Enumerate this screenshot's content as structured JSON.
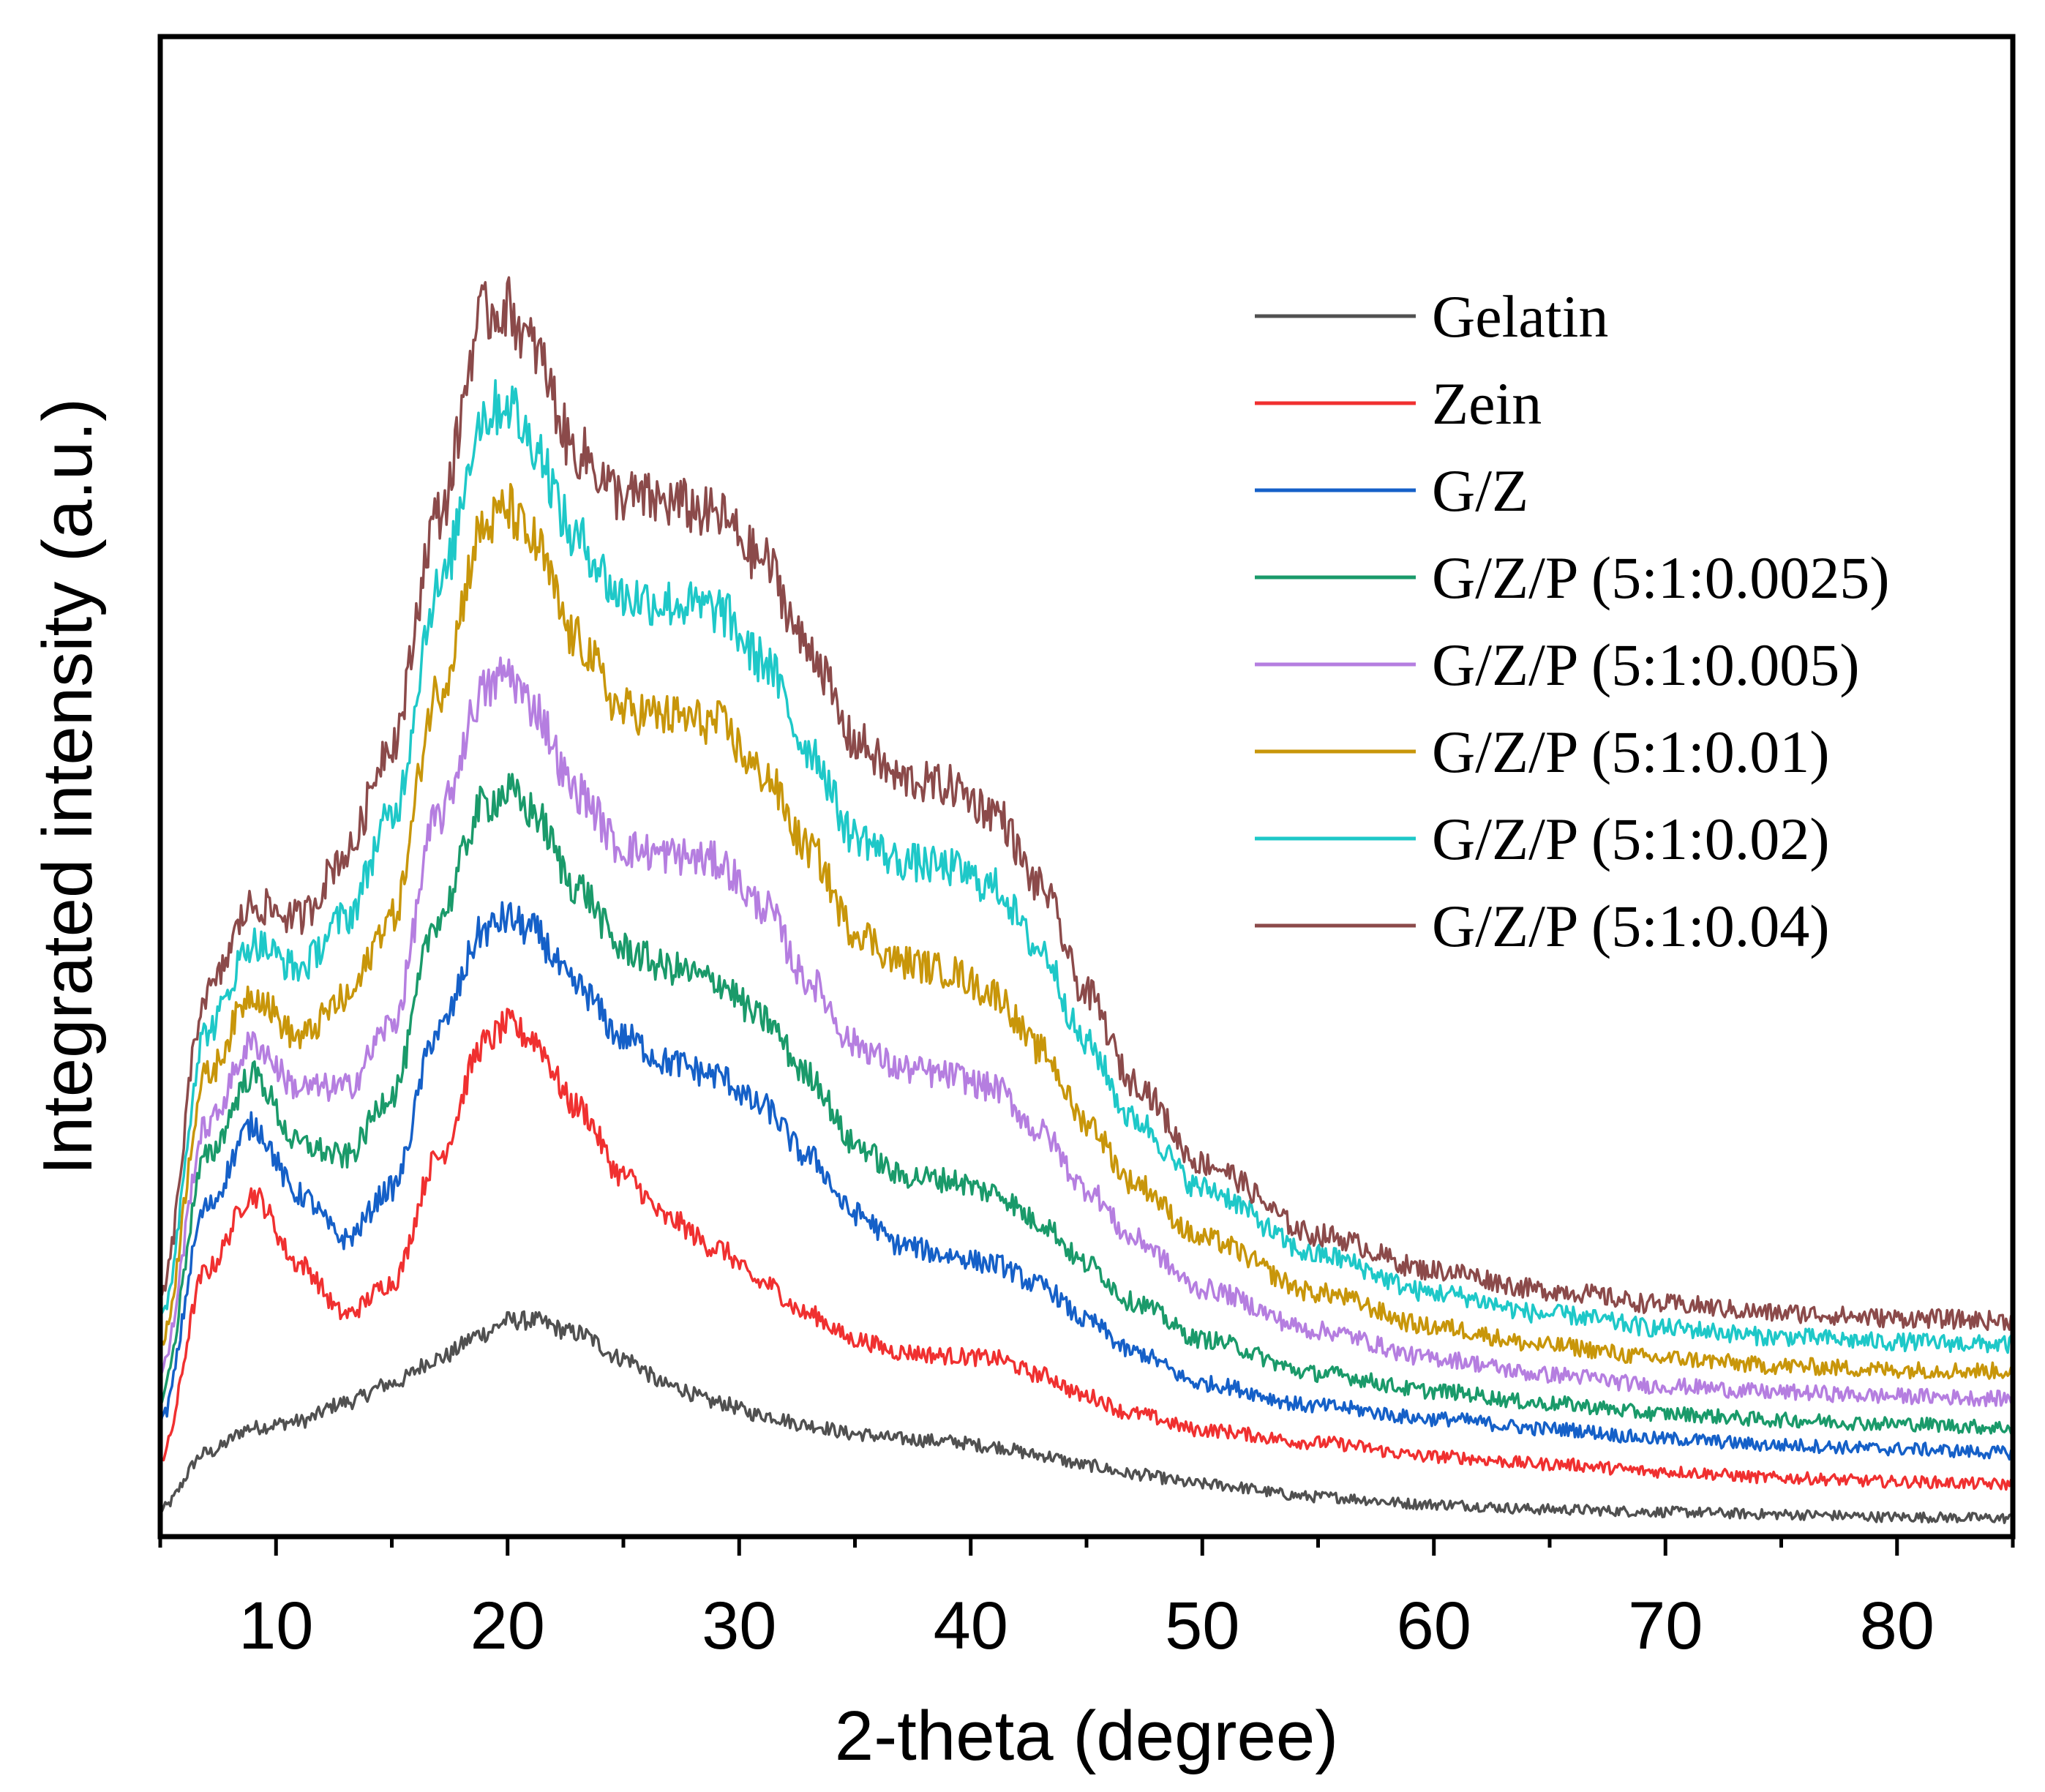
{
  "chart_data": {
    "type": "line",
    "xlabel": "2-theta (degree)",
    "ylabel": "Integrated intensity (a.u.)",
    "xlim": [
      5,
      85
    ],
    "ylim": [
      0,
      1
    ],
    "x_ticks": [
      10,
      20,
      30,
      40,
      50,
      60,
      70,
      80
    ],
    "y_ticks_shown": false,
    "legend_position": "top-right",
    "x": [
      5,
      7,
      9,
      11,
      13,
      15,
      17,
      19,
      20,
      21,
      23,
      25,
      27,
      29,
      31,
      33,
      35,
      37,
      39,
      41,
      43,
      45,
      47,
      50,
      55,
      60,
      65,
      70,
      75,
      80,
      85
    ],
    "series": [
      {
        "name": "Gelatin",
        "color": "#505050",
        "values": [
          0.01,
          0.055,
          0.075,
          0.08,
          0.095,
          0.11,
          0.13,
          0.15,
          0.16,
          0.16,
          0.15,
          0.13,
          0.108,
          0.095,
          0.085,
          0.077,
          0.07,
          0.066,
          0.064,
          0.06,
          0.053,
          0.045,
          0.038,
          0.03,
          0.02,
          0.014,
          0.01,
          0.008,
          0.006,
          0.004,
          0.003
        ]
      },
      {
        "name": "Zein",
        "color": "#f03030",
        "values": [
          0.05,
          0.2,
          0.26,
          0.205,
          0.165,
          0.19,
          0.29,
          0.38,
          0.395,
          0.385,
          0.33,
          0.275,
          0.24,
          0.218,
          0.19,
          0.165,
          0.145,
          0.135,
          0.132,
          0.13,
          0.117,
          0.1,
          0.086,
          0.073,
          0.063,
          0.052,
          0.046,
          0.04,
          0.035,
          0.032,
          0.03
        ]
      },
      {
        "name": "G/Z",
        "color": "#1560c8",
        "values": [
          0.08,
          0.25,
          0.315,
          0.26,
          0.225,
          0.265,
          0.39,
          0.47,
          0.48,
          0.47,
          0.425,
          0.385,
          0.365,
          0.355,
          0.33,
          0.29,
          0.245,
          0.22,
          0.212,
          0.205,
          0.188,
          0.16,
          0.135,
          0.11,
          0.092,
          0.082,
          0.074,
          0.066,
          0.061,
          0.058,
          0.055
        ]
      },
      {
        "name": "G/Z/P (5:1:0.0025)",
        "color": "#1a9a6a",
        "values": [
          0.1,
          0.29,
          0.355,
          0.3,
          0.29,
          0.34,
          0.48,
          0.57,
          0.58,
          0.565,
          0.505,
          0.455,
          0.44,
          0.43,
          0.4,
          0.355,
          0.3,
          0.275,
          0.272,
          0.262,
          0.238,
          0.205,
          0.175,
          0.145,
          0.118,
          0.104,
          0.094,
          0.086,
          0.081,
          0.078,
          0.075
        ]
      },
      {
        "name": "G/Z/P (5:1:0.005)",
        "color": "#b57ee0",
        "values": [
          0.12,
          0.315,
          0.38,
          0.345,
          0.345,
          0.395,
          0.56,
          0.66,
          0.675,
          0.65,
          0.58,
          0.535,
          0.53,
          0.525,
          0.49,
          0.43,
          0.38,
          0.36,
          0.355,
          0.345,
          0.31,
          0.265,
          0.225,
          0.185,
          0.152,
          0.13,
          0.117,
          0.108,
          0.103,
          0.1,
          0.098
        ]
      },
      {
        "name": "G/Z/P (5:1:0.01)",
        "color": "#c8960a",
        "values": [
          0.14,
          0.355,
          0.42,
          0.385,
          0.415,
          0.48,
          0.66,
          0.79,
          0.805,
          0.78,
          0.7,
          0.645,
          0.64,
          0.635,
          0.595,
          0.535,
          0.47,
          0.445,
          0.438,
          0.42,
          0.375,
          0.318,
          0.27,
          0.225,
          0.182,
          0.155,
          0.14,
          0.13,
          0.124,
          0.121,
          0.12
        ]
      },
      {
        "name": "G/Z/P (5:1:0.02)",
        "color": "#1ec8c8",
        "values": [
          0.16,
          0.39,
          0.46,
          0.44,
          0.48,
          0.56,
          0.74,
          0.88,
          0.89,
          0.86,
          0.78,
          0.735,
          0.73,
          0.725,
          0.685,
          0.615,
          0.545,
          0.525,
          0.52,
          0.505,
          0.455,
          0.38,
          0.32,
          0.265,
          0.212,
          0.182,
          0.165,
          0.154,
          0.147,
          0.143,
          0.141
        ]
      },
      {
        "name": "G/Z/P (5:1:0.04)",
        "color": "#8b4a4a",
        "values": [
          0.18,
          0.42,
          0.49,
          0.48,
          0.53,
          0.62,
          0.8,
          0.96,
          0.965,
          0.935,
          0.85,
          0.815,
          0.81,
          0.8,
          0.765,
          0.695,
          0.62,
          0.59,
          0.585,
          0.565,
          0.505,
          0.42,
          0.35,
          0.285,
          0.228,
          0.2,
          0.184,
          0.173,
          0.166,
          0.162,
          0.16
        ]
      }
    ]
  }
}
